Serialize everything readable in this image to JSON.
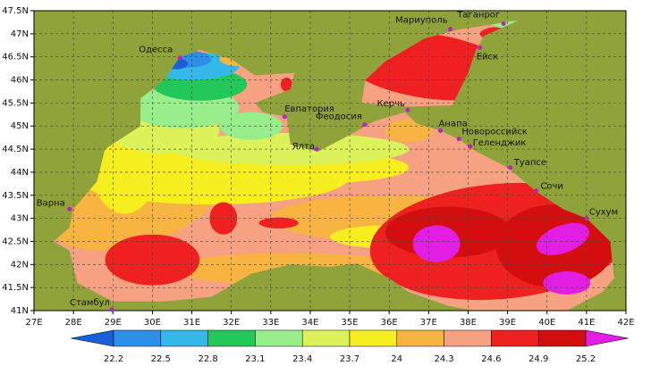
{
  "map": {
    "lon_ticks": [
      {
        "value": 27,
        "label": "27E"
      },
      {
        "value": 28,
        "label": "28E"
      },
      {
        "value": 29,
        "label": "29E"
      },
      {
        "value": 30,
        "label": "30E"
      },
      {
        "value": 31,
        "label": "31E"
      },
      {
        "value": 32,
        "label": "32E"
      },
      {
        "value": 33,
        "label": "33E"
      },
      {
        "value": 34,
        "label": "34E"
      },
      {
        "value": 35,
        "label": "35E"
      },
      {
        "value": 36,
        "label": "36E"
      },
      {
        "value": 37,
        "label": "37E"
      },
      {
        "value": 38,
        "label": "38E"
      },
      {
        "value": 39,
        "label": "39E"
      },
      {
        "value": 40,
        "label": "40E"
      },
      {
        "value": 41,
        "label": "41E"
      },
      {
        "value": 42,
        "label": "42E"
      }
    ],
    "lat_ticks": [
      {
        "value": 41,
        "label": "41N"
      },
      {
        "value": 41.5,
        "label": "41.5N"
      },
      {
        "value": 42,
        "label": "42N"
      },
      {
        "value": 42.5,
        "label": "42.5N"
      },
      {
        "value": 43,
        "label": "43N"
      },
      {
        "value": 43.5,
        "label": "43.5N"
      },
      {
        "value": 44,
        "label": "44N"
      },
      {
        "value": 44.5,
        "label": "44.5N"
      },
      {
        "value": 45,
        "label": "45N"
      },
      {
        "value": 45.5,
        "label": "45.5N"
      },
      {
        "value": 46,
        "label": "46N"
      },
      {
        "value": 46.5,
        "label": "46.5N"
      },
      {
        "value": 47,
        "label": "47N"
      },
      {
        "value": 47.5,
        "label": "47.5N"
      }
    ],
    "cities": [
      {
        "name": "Одесса",
        "lon": 30.7,
        "lat": 46.48
      },
      {
        "name": "Мариуполь",
        "lon": 37.55,
        "lat": 47.1
      },
      {
        "name": "Таганрог",
        "lon": 38.9,
        "lat": 47.22
      },
      {
        "name": "Ейск",
        "lon": 38.3,
        "lat": 46.7
      },
      {
        "name": "Евпатория",
        "lon": 33.35,
        "lat": 45.2
      },
      {
        "name": "Феодосия",
        "lon": 35.38,
        "lat": 45.03
      },
      {
        "name": "Керчь",
        "lon": 36.47,
        "lat": 45.35
      },
      {
        "name": "Анапа",
        "lon": 37.3,
        "lat": 44.9
      },
      {
        "name": "Новороссийск",
        "lon": 37.77,
        "lat": 44.72
      },
      {
        "name": "Геленджик",
        "lon": 38.05,
        "lat": 44.56
      },
      {
        "name": "Ялта",
        "lon": 34.16,
        "lat": 44.5
      },
      {
        "name": "Туапсе",
        "lon": 39.07,
        "lat": 44.1
      },
      {
        "name": "Сочи",
        "lon": 39.72,
        "lat": 43.6
      },
      {
        "name": "Сухум",
        "lon": 41.0,
        "lat": 43.0
      },
      {
        "name": "Варна",
        "lon": 27.9,
        "lat": 43.2
      },
      {
        "name": "Стамбул",
        "lon": 28.97,
        "lat": 41.02
      }
    ],
    "colorbar": {
      "ticks": [
        22.2,
        22.5,
        22.8,
        23.1,
        23.4,
        23.7,
        24,
        24.3,
        24.6,
        24.9,
        25.2
      ],
      "colors": [
        "#1a5fd6",
        "#2f8ee6",
        "#33b8e8",
        "#22c85a",
        "#98ee8a",
        "#dcf25a",
        "#f6ee1e",
        "#f7b440",
        "#f6a282",
        "#ee2020",
        "#d40e0e",
        "#e21ee2"
      ]
    }
  }
}
